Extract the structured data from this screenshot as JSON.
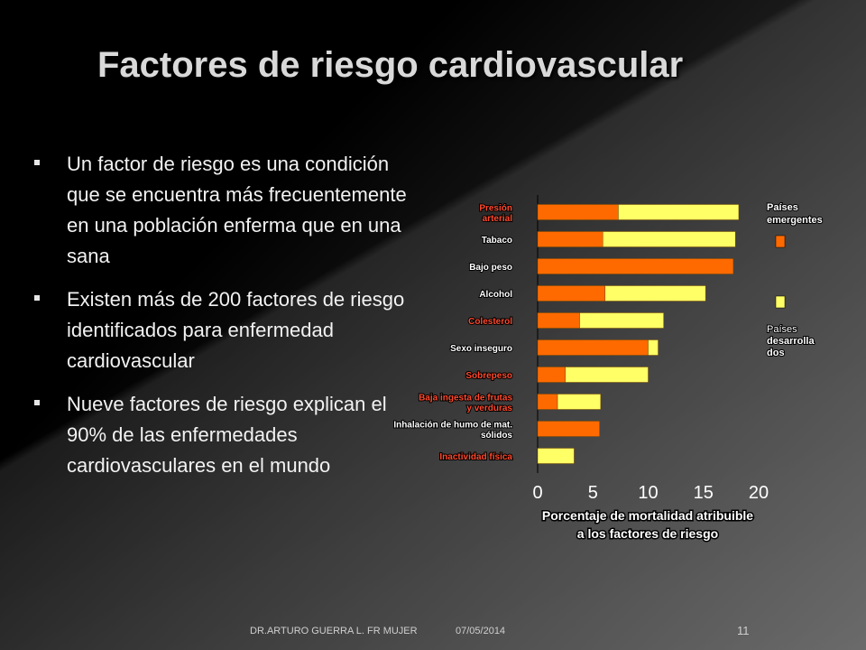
{
  "slide": {
    "title": "Factores de riesgo cardiovascular",
    "bullets": [
      "Un factor de riesgo es una condición que se encuentra más frecuentemente en una población enferma que en una sana",
      "Existen más de 200 factores de riesgo identificados para enfermedad cardiovascular",
      "Nueve factores de riesgo explican el 90% de las enfermedades cardiovasculares en el mundo"
    ],
    "footer": {
      "author": "DR.ARTURO GUERRA L. FR MUJER",
      "date": "07/05/2014",
      "page": "11"
    }
  },
  "chart_data": {
    "type": "bar",
    "orientation": "horizontal",
    "stacked": true,
    "xlabel": "Porcentaje de mortalidad atribuible a los factores de riesgo",
    "xlim": [
      0,
      20
    ],
    "xticks": [
      0,
      5,
      10,
      15,
      20
    ],
    "categories": [
      {
        "label": "Presión arterial",
        "lines": [
          "Presión",
          "arterial"
        ],
        "color": "#ff4a2e"
      },
      {
        "label": "Tabaco",
        "lines": [
          "Tabaco"
        ],
        "color": "#ffffff"
      },
      {
        "label": "Bajo peso",
        "lines": [
          "Bajo peso"
        ],
        "color": "#ffffff"
      },
      {
        "label": "Alcohol",
        "lines": [
          "Alcohol"
        ],
        "color": "#ffffff"
      },
      {
        "label": "Colesterol",
        "lines": [
          "Colesterol"
        ],
        "color": "#ff4a2e"
      },
      {
        "label": "Sexo inseguro",
        "lines": [
          "Sexo inseguro"
        ],
        "color": "#ffffff"
      },
      {
        "label": "Sobrepeso",
        "lines": [
          "Sobrepeso"
        ],
        "color": "#ff4a2e"
      },
      {
        "label": "Baja ingesta de frutas y verduras",
        "lines": [
          "Baja ingesta de frutas",
          "y verduras"
        ],
        "color": "#ff4a2e"
      },
      {
        "label": "Inhalación de humo de mat. sólidos",
        "lines": [
          "Inhalación de humo de mat.",
          "sólidos"
        ],
        "color": "#ffffff"
      },
      {
        "label": "Inactividad física",
        "lines": [
          "Inactividad física"
        ],
        "color": "#ff4a2e"
      }
    ],
    "series": [
      {
        "name": "Países emergentes",
        "color": "#ff6a00",
        "values": [
          7.3,
          5.9,
          17.7,
          6.1,
          3.8,
          10.0,
          2.5,
          1.8,
          5.6,
          0
        ]
      },
      {
        "name": "Países desarrollados",
        "color": "#ffff66",
        "values": [
          10.9,
          12.0,
          0,
          9.1,
          7.6,
          0.9,
          7.5,
          3.9,
          0,
          3.3
        ]
      }
    ],
    "legend": {
      "placement": "right",
      "items": [
        {
          "lines": [
            "Países",
            "emergentes"
          ],
          "color": "#ff6a00"
        },
        {
          "lines": [
            "Países",
            "desarrolla",
            "dos"
          ],
          "color": "#ffff66"
        }
      ]
    },
    "grid": false
  }
}
